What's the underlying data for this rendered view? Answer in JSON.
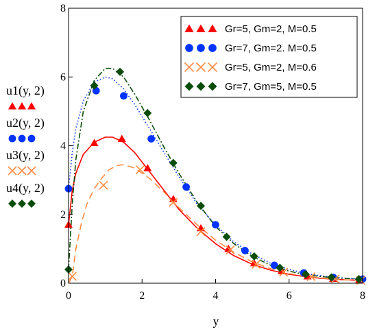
{
  "chart_data": {
    "type": "line",
    "xlabel": "y",
    "xlim": [
      0,
      8
    ],
    "ylim": [
      0,
      8
    ],
    "x_ticks": [
      "0",
      "2",
      "4",
      "6",
      "8"
    ],
    "y_ticks": [
      "0",
      "2",
      "4",
      "6",
      "8"
    ],
    "grid": false,
    "legend_position": "top-right",
    "series": [
      {
        "name": "Gr=5, Gm=2, M=0.5",
        "ylabel": "u1(y, 2)",
        "color": "#ff0000",
        "line_style": "solid",
        "marker": "triangle",
        "x": [
          0,
          0.1,
          0.2,
          0.4,
          0.7,
          1.0,
          1.2,
          1.5,
          1.8,
          2.2,
          2.6,
          3.0,
          3.5,
          4.0,
          4.5,
          5.0,
          5.5,
          6.0,
          6.5,
          7.0,
          7.5,
          8.0
        ],
        "y": [
          1.7,
          2.7,
          3.2,
          3.75,
          4.1,
          4.25,
          4.25,
          4.1,
          3.8,
          3.25,
          2.7,
          2.15,
          1.6,
          1.15,
          0.8,
          0.55,
          0.38,
          0.26,
          0.18,
          0.13,
          0.1,
          0.08
        ],
        "marker_x": [
          0,
          0.7,
          1.45,
          2.15,
          2.85,
          3.6,
          4.35,
          5.05,
          5.8,
          6.5,
          7.2,
          7.9
        ],
        "marker_y": [
          1.7,
          4.08,
          4.2,
          3.35,
          2.45,
          1.6,
          1.0,
          0.58,
          0.35,
          0.2,
          0.13,
          0.08
        ]
      },
      {
        "name": "Gr=7, Gm=2. M=0.5",
        "ylabel": "u2(y, 2)",
        "color": "#0033ff",
        "line_style": "dotted",
        "marker": "circle",
        "x": [
          0,
          0.1,
          0.2,
          0.4,
          0.7,
          1.0,
          1.2,
          1.5,
          1.8,
          2.2,
          2.6,
          3.0,
          3.5,
          4.0,
          4.5,
          5.0,
          5.5,
          6.0,
          6.5,
          7.0,
          7.5,
          8.0
        ],
        "y": [
          2.75,
          3.8,
          4.5,
          5.3,
          5.85,
          6.0,
          5.95,
          5.65,
          5.2,
          4.5,
          3.8,
          3.1,
          2.3,
          1.7,
          1.2,
          0.85,
          0.58,
          0.4,
          0.27,
          0.2,
          0.15,
          0.12
        ],
        "marker_x": [
          0,
          0.75,
          1.5,
          2.25,
          3.2,
          4.0,
          4.8,
          5.6,
          6.4,
          7.2,
          8.0
        ],
        "marker_y": [
          2.75,
          5.6,
          5.45,
          4.2,
          2.8,
          1.7,
          0.95,
          0.52,
          0.3,
          0.17,
          0.12
        ]
      },
      {
        "name": "Gr=5, Gm=2, M=0.6",
        "ylabel": "u3(y, 2)",
        "color": "#ff8c42",
        "line_style": "dashed",
        "marker": "x",
        "x": [
          0,
          0.1,
          0.2,
          0.35,
          0.5,
          0.7,
          0.9,
          1.1,
          1.3,
          1.5,
          1.8,
          2.2,
          2.6,
          3.0,
          3.5,
          4.0,
          4.5,
          5.0,
          5.5,
          6.0,
          6.5,
          7.0,
          7.5,
          8.0
        ],
        "y": [
          0,
          0.2,
          1.0,
          1.75,
          2.3,
          2.75,
          3.05,
          3.3,
          3.42,
          3.45,
          3.35,
          3.05,
          2.65,
          2.2,
          1.7,
          1.25,
          0.9,
          0.62,
          0.42,
          0.28,
          0.2,
          0.14,
          0.1,
          0.08
        ],
        "marker_x": [
          0.1,
          0.95,
          1.95,
          2.85,
          3.6,
          4.4,
          5.1,
          5.85,
          6.6,
          7.25,
          7.95
        ],
        "marker_y": [
          0.2,
          2.85,
          3.3,
          2.35,
          1.5,
          0.97,
          0.55,
          0.32,
          0.19,
          0.12,
          0.08
        ]
      },
      {
        "name": "Gr=7, Gm=5, M=0.5",
        "ylabel": "u4(y, 2)",
        "color": "#0a4d0a",
        "line_style": "dash-dot",
        "marker": "diamond",
        "x": [
          0,
          0.1,
          0.2,
          0.4,
          0.7,
          1.0,
          1.2,
          1.5,
          1.8,
          2.2,
          2.6,
          3.0,
          3.5,
          4.0,
          4.5,
          5.0,
          5.5,
          6.0,
          6.5,
          7.0,
          7.5,
          8.0
        ],
        "y": [
          0.4,
          2.3,
          3.6,
          5.0,
          5.9,
          6.25,
          6.25,
          6.0,
          5.5,
          4.75,
          3.95,
          3.2,
          2.35,
          1.65,
          1.15,
          0.78,
          0.52,
          0.35,
          0.24,
          0.18,
          0.14,
          0.12
        ],
        "marker_x": [
          0,
          0.7,
          1.4,
          2.15,
          2.85,
          3.6,
          4.3,
          5.05,
          5.75,
          6.45,
          7.15,
          7.9
        ],
        "marker_y": [
          0.4,
          5.75,
          6.15,
          4.95,
          3.5,
          2.25,
          1.35,
          0.78,
          0.45,
          0.26,
          0.17,
          0.12
        ]
      }
    ]
  }
}
